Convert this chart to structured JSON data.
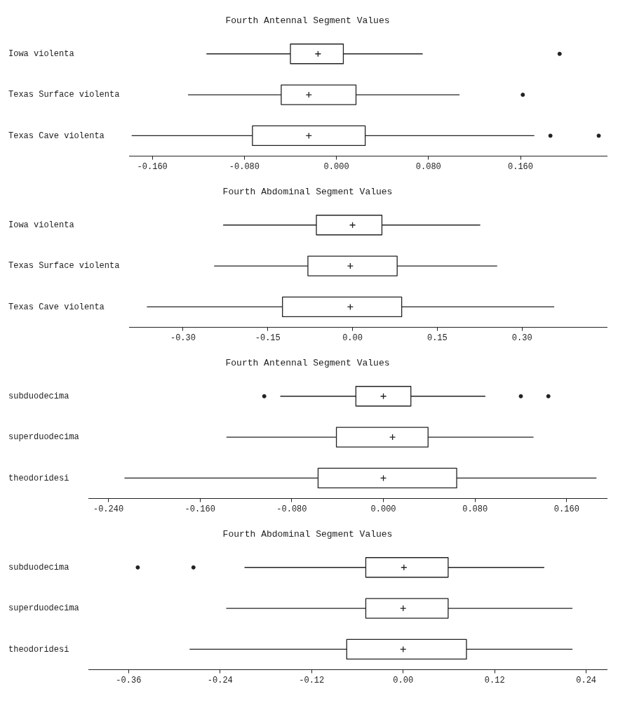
{
  "chart_data": [
    {
      "type": "box",
      "orientation": "horizontal",
      "title": "Fourth Antennal Segment Values",
      "categories": [
        "Iowa violenta",
        "Texas Surface violenta",
        "Texas Cave violenta"
      ],
      "xlim": [
        -0.18,
        0.235
      ],
      "xticks": [
        {
          "value": -0.16,
          "label": "-0.160"
        },
        {
          "value": -0.08,
          "label": "-0.080"
        },
        {
          "value": 0.0,
          "label": "0.000"
        },
        {
          "value": 0.08,
          "label": "0.080"
        },
        {
          "value": 0.16,
          "label": "0.160"
        }
      ],
      "boxes": [
        {
          "low": -0.113,
          "q1": -0.04,
          "median": -0.016,
          "q3": 0.006,
          "high": 0.075,
          "outliers": [
            0.194
          ]
        },
        {
          "low": -0.129,
          "q1": -0.048,
          "median": -0.024,
          "q3": 0.017,
          "high": 0.107,
          "outliers": [
            0.162
          ]
        },
        {
          "low": -0.178,
          "q1": -0.073,
          "median": -0.024,
          "q3": 0.025,
          "high": 0.172,
          "outliers": [
            0.186,
            0.228
          ]
        }
      ]
    },
    {
      "type": "box",
      "orientation": "horizontal",
      "title": "Fourth Abdominal Segment Values",
      "categories": [
        "Iowa violenta",
        "Texas Surface violenta",
        "Texas Cave violenta"
      ],
      "xlim": [
        -0.395,
        0.45
      ],
      "xticks": [
        {
          "value": -0.3,
          "label": "-0.30"
        },
        {
          "value": -0.15,
          "label": "-0.15"
        },
        {
          "value": 0.0,
          "label": "0.00"
        },
        {
          "value": 0.15,
          "label": "0.15"
        },
        {
          "value": 0.3,
          "label": "0.30"
        }
      ],
      "boxes": [
        {
          "low": -0.229,
          "q1": -0.064,
          "median": 0.0,
          "q3": 0.052,
          "high": 0.226
        },
        {
          "low": -0.245,
          "q1": -0.079,
          "median": -0.004,
          "q3": 0.079,
          "high": 0.256
        },
        {
          "low": -0.364,
          "q1": -0.124,
          "median": -0.004,
          "q3": 0.087,
          "high": 0.357
        }
      ]
    },
    {
      "type": "box",
      "orientation": "horizontal",
      "title": "Fourth Antennal Segment Values",
      "categories": [
        "subduodecima",
        "superduodecima",
        "theodoridesi"
      ],
      "xlim": [
        -0.257,
        0.195
      ],
      "xticks": [
        {
          "value": -0.24,
          "label": "-0.240"
        },
        {
          "value": -0.16,
          "label": "-0.160"
        },
        {
          "value": -0.08,
          "label": "-0.080"
        },
        {
          "value": 0.0,
          "label": "0.000"
        },
        {
          "value": 0.08,
          "label": "0.080"
        },
        {
          "value": 0.16,
          "label": "0.160"
        }
      ],
      "boxes": [
        {
          "low": -0.09,
          "q1": -0.024,
          "median": 0.0,
          "q3": 0.024,
          "high": 0.089,
          "outliers": [
            -0.104,
            0.12,
            0.144
          ]
        },
        {
          "low": -0.137,
          "q1": -0.041,
          "median": 0.008,
          "q3": 0.039,
          "high": 0.131
        },
        {
          "low": -0.226,
          "q1": -0.057,
          "median": 0.0,
          "q3": 0.064,
          "high": 0.186
        }
      ]
    },
    {
      "type": "box",
      "orientation": "horizontal",
      "title": "Fourth Abdominal Segment Values",
      "categories": [
        "subduodecima",
        "superduodecima",
        "theodoridesi"
      ],
      "xlim": [
        -0.412,
        0.267
      ],
      "xticks": [
        {
          "value": -0.36,
          "label": "-0.36"
        },
        {
          "value": -0.24,
          "label": "-0.24"
        },
        {
          "value": -0.12,
          "label": "-0.12"
        },
        {
          "value": 0.0,
          "label": "0.00"
        },
        {
          "value": 0.12,
          "label": "0.12"
        },
        {
          "value": 0.24,
          "label": "0.24"
        }
      ],
      "boxes": [
        {
          "low": -0.208,
          "q1": -0.049,
          "median": 0.001,
          "q3": 0.059,
          "high": 0.185,
          "outliers": [
            -0.348,
            -0.275
          ]
        },
        {
          "low": -0.232,
          "q1": -0.049,
          "median": 0.0,
          "q3": 0.059,
          "high": 0.222
        },
        {
          "low": -0.28,
          "q1": -0.074,
          "median": 0.0,
          "q3": 0.083,
          "high": 0.222
        }
      ]
    }
  ]
}
